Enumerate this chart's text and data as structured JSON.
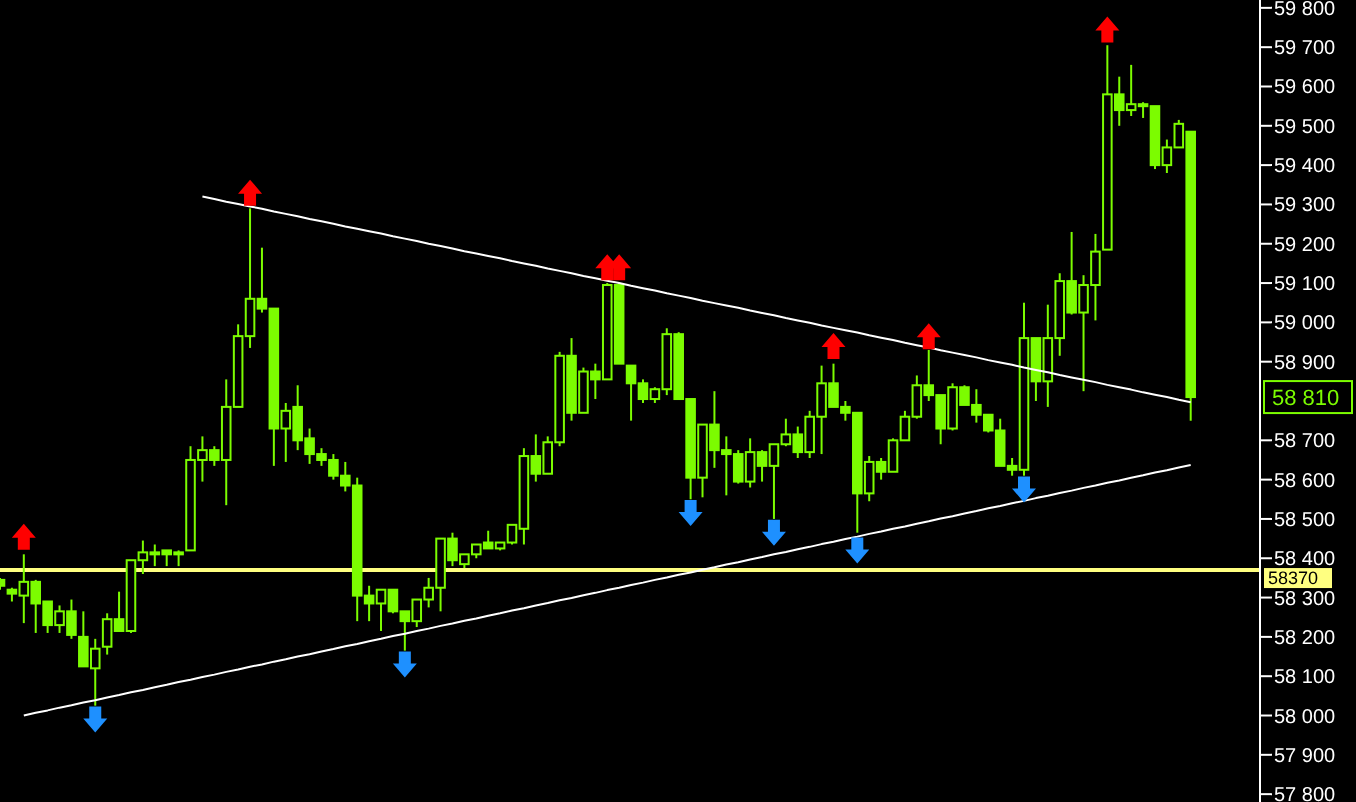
{
  "chart_data": {
    "type": "candlestick",
    "color": "#7cfc00",
    "ylim": [
      57780,
      59820
    ],
    "tick_labels": "y",
    "grid": false,
    "categories": [
      null,
      null,
      null,
      null,
      null,
      null,
      null,
      null,
      null,
      null,
      null,
      null,
      null,
      null,
      null,
      null,
      null,
      null,
      null,
      null,
      null,
      null,
      null,
      null,
      null,
      null,
      null,
      null,
      null,
      null,
      null,
      null,
      null,
      null,
      null,
      null,
      null,
      null,
      null,
      null,
      null,
      null,
      null,
      null,
      null,
      null,
      null,
      null,
      null,
      null,
      null,
      null,
      null,
      null,
      null,
      null,
      null,
      null,
      null,
      null,
      null,
      null,
      null,
      null,
      null,
      null,
      null,
      null,
      null,
      null,
      null,
      null,
      null,
      null,
      null,
      null,
      null,
      null,
      null,
      null,
      null,
      null,
      null,
      null,
      null,
      null,
      null,
      null,
      null,
      null,
      null,
      null,
      null,
      null,
      null,
      null,
      null,
      null,
      null,
      null,
      null
    ],
    "ohlc": [
      [
        58345,
        58350,
        58320,
        58330
      ],
      [
        58320,
        58325,
        58290,
        58310
      ],
      [
        58305,
        58410,
        58235,
        58340
      ],
      [
        58340,
        58345,
        58210,
        58285
      ],
      [
        58290,
        58290,
        58210,
        58230
      ],
      [
        58230,
        58280,
        58210,
        58265
      ],
      [
        58265,
        58295,
        58195,
        58205
      ],
      [
        58200,
        58265,
        58125,
        58125
      ],
      [
        58120,
        58195,
        58025,
        58170
      ],
      [
        58175,
        58260,
        58155,
        58245
      ],
      [
        58245,
        58315,
        58215,
        58215
      ],
      [
        58215,
        58395,
        58210,
        58395
      ],
      [
        58395,
        58445,
        58360,
        58415
      ],
      [
        58415,
        58435,
        58380,
        58410
      ],
      [
        58420,
        58420,
        58380,
        58410
      ],
      [
        58410,
        58420,
        58380,
        58415
      ],
      [
        58420,
        58685,
        58420,
        58650
      ],
      [
        58650,
        58710,
        58595,
        58675
      ],
      [
        58675,
        58685,
        58635,
        58650
      ],
      [
        58650,
        58855,
        58535,
        58785
      ],
      [
        58785,
        58995,
        58785,
        58965
      ],
      [
        58965,
        59290,
        58935,
        59060
      ],
      [
        59060,
        59190,
        59025,
        59035
      ],
      [
        59035,
        59035,
        58635,
        58730
      ],
      [
        58730,
        58795,
        58645,
        58775
      ],
      [
        58785,
        58840,
        58675,
        58700
      ],
      [
        58705,
        58730,
        58640,
        58665
      ],
      [
        58665,
        58680,
        58635,
        58650
      ],
      [
        58650,
        58665,
        58600,
        58610
      ],
      [
        58610,
        58645,
        58570,
        58585
      ],
      [
        58585,
        58605,
        58240,
        58305
      ],
      [
        58305,
        58330,
        58240,
        58285
      ],
      [
        58285,
        58320,
        58215,
        58320
      ],
      [
        58320,
        58320,
        58260,
        58265
      ],
      [
        58265,
        58265,
        58165,
        58240
      ],
      [
        58240,
        58295,
        58225,
        58295
      ],
      [
        58295,
        58350,
        58275,
        58325
      ],
      [
        58325,
        58450,
        58265,
        58450
      ],
      [
        58450,
        58465,
        58380,
        58395
      ],
      [
        58385,
        58410,
        58375,
        58410
      ],
      [
        58410,
        58435,
        58400,
        58435
      ],
      [
        58440,
        58470,
        58425,
        58425
      ],
      [
        58425,
        58440,
        58420,
        58440
      ],
      [
        58440,
        58485,
        58435,
        58485
      ],
      [
        58475,
        58680,
        58435,
        58660
      ],
      [
        58660,
        58715,
        58595,
        58615
      ],
      [
        58615,
        58710,
        58615,
        58695
      ],
      [
        58695,
        58925,
        58685,
        58915
      ],
      [
        58915,
        58960,
        58750,
        58770
      ],
      [
        58770,
        58885,
        58770,
        58875
      ],
      [
        58875,
        58895,
        58805,
        58855
      ],
      [
        58855,
        59100,
        58855,
        59095
      ],
      [
        59095,
        59100,
        58895,
        58895
      ],
      [
        58890,
        58890,
        58750,
        58845
      ],
      [
        58845,
        58855,
        58795,
        58805
      ],
      [
        58805,
        58835,
        58795,
        58830
      ],
      [
        58830,
        58985,
        58815,
        58970
      ],
      [
        58970,
        58975,
        58805,
        58805
      ],
      [
        58805,
        58805,
        58550,
        58605
      ],
      [
        58605,
        58740,
        58555,
        58740
      ],
      [
        58740,
        58825,
        58630,
        58675
      ],
      [
        58675,
        58710,
        58560,
        58665
      ],
      [
        58665,
        58675,
        58590,
        58595
      ],
      [
        58595,
        58705,
        58580,
        58670
      ],
      [
        58670,
        58675,
        58595,
        58635
      ],
      [
        58635,
        58690,
        58500,
        58690
      ],
      [
        58690,
        58755,
        58685,
        58715
      ],
      [
        58715,
        58735,
        58655,
        58670
      ],
      [
        58670,
        58775,
        58655,
        58760
      ],
      [
        58760,
        58890,
        58665,
        58845
      ],
      [
        58845,
        58895,
        58785,
        58785
      ],
      [
        58785,
        58800,
        58750,
        58770
      ],
      [
        58770,
        58770,
        58465,
        58565
      ],
      [
        58565,
        58660,
        58545,
        58645
      ],
      [
        58645,
        58655,
        58600,
        58620
      ],
      [
        58620,
        58705,
        58620,
        58700
      ],
      [
        58700,
        58775,
        58700,
        58760
      ],
      [
        58760,
        58865,
        58755,
        58840
      ],
      [
        58840,
        58930,
        58800,
        58815
      ],
      [
        58815,
        58815,
        58690,
        58730
      ],
      [
        58730,
        58845,
        58725,
        58835
      ],
      [
        58835,
        58840,
        58790,
        58790
      ],
      [
        58790,
        58830,
        58745,
        58765
      ],
      [
        58765,
        58765,
        58720,
        58725
      ],
      [
        58725,
        58755,
        58635,
        58635
      ],
      [
        58635,
        58655,
        58610,
        58625
      ],
      [
        58625,
        59050,
        58610,
        58960
      ],
      [
        58960,
        58960,
        58800,
        58850
      ],
      [
        58850,
        59045,
        58785,
        58960
      ],
      [
        58960,
        59125,
        58915,
        59105
      ],
      [
        59105,
        59230,
        59020,
        59025
      ],
      [
        59025,
        59120,
        58825,
        59095
      ],
      [
        59095,
        59225,
        59005,
        59180
      ],
      [
        59185,
        59705,
        59185,
        59580
      ],
      [
        59580,
        59625,
        59500,
        59540
      ],
      [
        59540,
        59655,
        59525,
        59555
      ],
      [
        59555,
        59560,
        59520,
        59550
      ],
      [
        59550,
        59550,
        59390,
        59400
      ],
      [
        59400,
        59465,
        59380,
        59445
      ],
      [
        59445,
        59515,
        59445,
        59505
      ],
      [
        59485,
        59485,
        58750,
        58810
      ]
    ],
    "series": [
      {
        "type": "line",
        "color": "#ffffff",
        "values": [
          null,
          null,
          null,
          null,
          null,
          null,
          null,
          null,
          null,
          null,
          null,
          null,
          null,
          null,
          null,
          null,
          null,
          59320,
          59314,
          59307,
          59301,
          59295,
          59289,
          59282,
          59276,
          59270,
          59263,
          59257,
          59251,
          59244,
          59238,
          59232,
          59226,
          59219,
          59213,
          59207,
          59200,
          59194,
          59188,
          59181,
          59175,
          59169,
          59163,
          59156,
          59150,
          59144,
          59137,
          59131,
          59125,
          59118,
          59112,
          59106,
          59100,
          59093,
          59087,
          59081,
          59074,
          59068,
          59062,
          59055,
          59049,
          59043,
          59037,
          59030,
          59024,
          59018,
          59011,
          59005,
          58999,
          58992,
          58986,
          58980,
          58974,
          58967,
          58961,
          58955,
          58948,
          58942,
          58936,
          58929,
          58923,
          58917,
          58911,
          58904,
          58898,
          58892,
          58885,
          58879,
          58873,
          58866,
          58860,
          58854,
          58848,
          58841,
          58835,
          58829,
          58822,
          58816,
          58810,
          58803,
          58797
        ]
      },
      {
        "type": "line",
        "color": "#ffffff",
        "values": [
          null,
          null,
          58000,
          58007,
          58013,
          58020,
          58026,
          58033,
          58039,
          58046,
          58052,
          58059,
          58065,
          58072,
          58078,
          58085,
          58091,
          58098,
          58104,
          58111,
          58117,
          58124,
          58130,
          58137,
          58143,
          58150,
          58156,
          58163,
          58169,
          58176,
          58182,
          58189,
          58195,
          58202,
          58208,
          58215,
          58221,
          58228,
          58234,
          58241,
          58247,
          58254,
          58260,
          58267,
          58273,
          58280,
          58286,
          58293,
          58299,
          58306,
          58312,
          58319,
          58325,
          58332,
          58338,
          58345,
          58351,
          58358,
          58364,
          58371,
          58377,
          58384,
          58390,
          58397,
          58403,
          58410,
          58416,
          58423,
          58429,
          58436,
          58442,
          58449,
          58455,
          58462,
          58468,
          58475,
          58481,
          58488,
          58494,
          58501,
          58507,
          58514,
          58520,
          58527,
          58533,
          58540,
          58546,
          58553,
          58559,
          58566,
          58572,
          58579,
          58585,
          58592,
          58598,
          58605,
          58611,
          58618,
          58624,
          58631,
          58637
        ]
      },
      {
        "type": "scatter",
        "color": "#ff0000",
        "values": [
          null,
          null,
          58455,
          null,
          null,
          null,
          null,
          null,
          null,
          null,
          null,
          null,
          null,
          null,
          null,
          null,
          null,
          null,
          null,
          null,
          null,
          59330,
          null,
          null,
          null,
          null,
          null,
          null,
          null,
          null,
          null,
          null,
          null,
          null,
          null,
          null,
          null,
          null,
          null,
          null,
          null,
          null,
          null,
          null,
          null,
          null,
          null,
          null,
          null,
          null,
          null,
          59140,
          59140,
          null,
          null,
          null,
          null,
          null,
          null,
          null,
          null,
          null,
          null,
          null,
          null,
          null,
          null,
          null,
          null,
          null,
          58940,
          null,
          null,
          null,
          null,
          null,
          null,
          null,
          58965,
          null,
          null,
          null,
          null,
          null,
          null,
          null,
          null,
          null,
          null,
          null,
          null,
          null,
          null,
          59745,
          null,
          null,
          null,
          null,
          null,
          null,
          null
        ]
      },
      {
        "type": "scatter",
        "color": "#1e90ff",
        "values": [
          null,
          null,
          null,
          null,
          null,
          null,
          null,
          null,
          57990,
          null,
          null,
          null,
          null,
          null,
          null,
          null,
          null,
          null,
          null,
          null,
          null,
          null,
          null,
          null,
          null,
          null,
          null,
          null,
          null,
          null,
          null,
          null,
          null,
          null,
          58130,
          null,
          null,
          null,
          null,
          null,
          null,
          null,
          null,
          null,
          null,
          null,
          null,
          null,
          null,
          null,
          null,
          null,
          null,
          null,
          null,
          null,
          null,
          null,
          58515,
          null,
          null,
          null,
          null,
          null,
          null,
          58465,
          null,
          null,
          null,
          null,
          null,
          null,
          58420,
          null,
          null,
          null,
          null,
          null,
          null,
          null,
          null,
          null,
          null,
          null,
          null,
          null,
          58575,
          null,
          null,
          null,
          null,
          null,
          null,
          null,
          null,
          null,
          null,
          null,
          null,
          null,
          null
        ]
      }
    ],
    "ref_lines": [
      {
        "axis": "y",
        "value": 58370,
        "label": "58370",
        "color": "#ffff80"
      }
    ],
    "annotations": [
      "58 810"
    ],
    "yticks": [
      {
        "value": 57800,
        "label": "57 800"
      },
      {
        "value": 57900,
        "label": "57 900"
      },
      {
        "value": 58000,
        "label": "58 000"
      },
      {
        "value": 58100,
        "label": "58 100"
      },
      {
        "value": 58200,
        "label": "58 200"
      },
      {
        "value": 58300,
        "label": "58 300"
      },
      {
        "value": 58400,
        "label": "58 400"
      },
      {
        "value": 58500,
        "label": "58 500"
      },
      {
        "value": 58600,
        "label": "58 600"
      },
      {
        "value": 58700,
        "label": "58 700"
      },
      {
        "value": 58900,
        "label": "58 900"
      },
      {
        "value": 59000,
        "label": "59 000"
      },
      {
        "value": 59100,
        "label": "59 100"
      },
      {
        "value": 59200,
        "label": "59 200"
      },
      {
        "value": 59300,
        "label": "59 300"
      },
      {
        "value": 59400,
        "label": "59 400"
      },
      {
        "value": 59500,
        "label": "59 500"
      },
      {
        "value": 59600,
        "label": "59 600"
      },
      {
        "value": 59700,
        "label": "59 700"
      },
      {
        "value": 59800,
        "label": "59 800"
      }
    ]
  }
}
